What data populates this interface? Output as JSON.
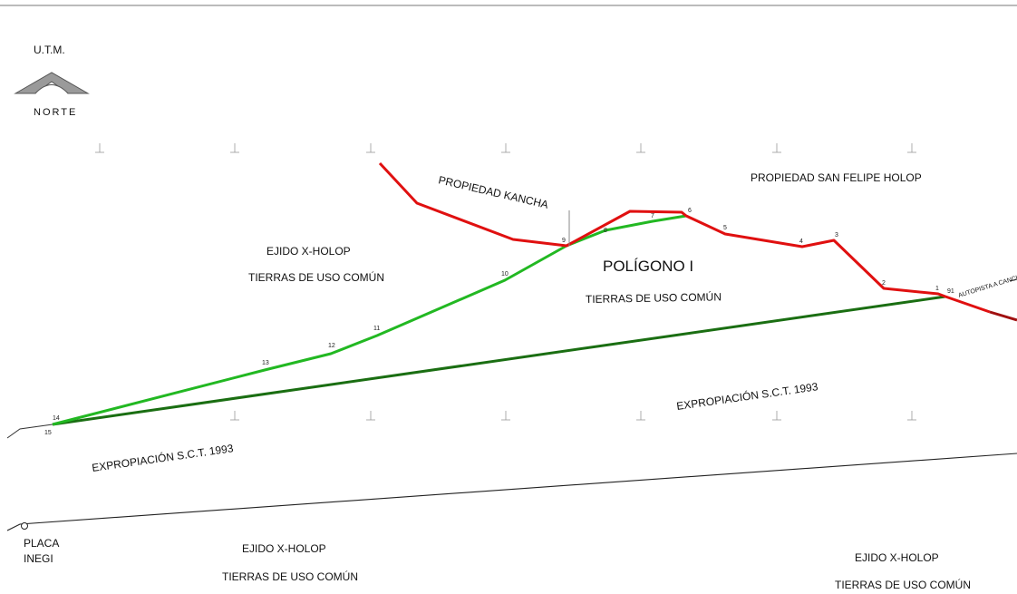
{
  "north_arrow": {
    "system": "U.T.M.",
    "label": "NORTE",
    "icon": "north-arrow-icon"
  },
  "labels": {
    "kancha": "PROPIEDAD KANCHA",
    "san_felipe": "PROPIEDAD SAN FELIPE HOLOP",
    "ejido_nw_line1": "EJIDO X-HOLOP",
    "ejido_nw_line2": "TIERRAS DE USO COMÚN",
    "poligono_title": "POLÍGONO I",
    "poligono_sub": "TIERRAS DE USO COMÚN",
    "autopista": "AUTOPISTA A CANCUN",
    "sct_center": "EXPROPIACIÓN S.C.T. 1993",
    "sct_left": "EXPROPIACIÓN S.C.T. 1993",
    "placa_line1": "PLACA",
    "placa_line2": "INEGI",
    "ejido_sw_line1": "EJIDO X-HOLOP",
    "ejido_sw_line2": "TIERRAS DE USO COMÚN",
    "ejido_se_line1": "EJIDO X-HOLOP",
    "ejido_se_line2": "TIERRAS DE USO COMÚN"
  },
  "vertices": {
    "v1": "1",
    "v2": "2",
    "v3": "3",
    "v4": "4",
    "v5": "5",
    "v6": "6",
    "v7": "7",
    "v8": "8",
    "v9": "9",
    "v10": "10",
    "v11": "11",
    "v12": "12",
    "v13": "13",
    "v14": "14",
    "v15": "15",
    "v91": "91"
  },
  "colors": {
    "red_boundary": "#e01010",
    "green_boundary": "#22b822",
    "sct_line": "#1a6e12",
    "highway_tail": "#a01010"
  }
}
